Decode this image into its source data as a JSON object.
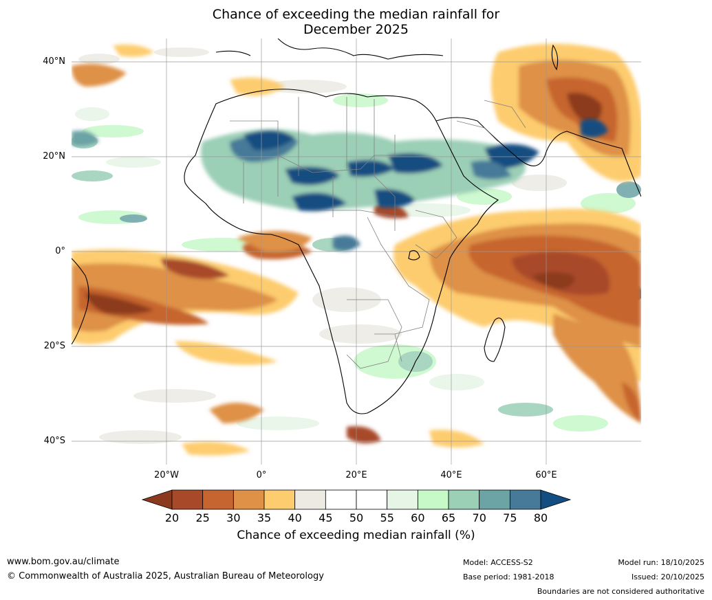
{
  "title": {
    "line1": "Chance of exceeding the median rainfall for",
    "line2": "December 2025"
  },
  "map": {
    "lat_labels": [
      "40°N",
      "20°N",
      "0°",
      "20°S",
      "40°S"
    ],
    "lon_labels": [
      "20°W",
      "0°",
      "20°E",
      "40°E",
      "60°E"
    ]
  },
  "colorbar": {
    "ticks": [
      "20",
      "25",
      "30",
      "35",
      "40",
      "45",
      "50",
      "55",
      "60",
      "65",
      "70",
      "75",
      "80"
    ],
    "colors": [
      "#8c3a1e",
      "#a8492a",
      "#c6652f",
      "#de9147",
      "#fdcc6e",
      "#eceae3",
      "#ffffff",
      "#ffffff",
      "#e6f5e6",
      "#c7f8c8",
      "#9bcfb6",
      "#6ca3a5",
      "#467a98",
      "#124e81"
    ],
    "label": "Chance of exceeding median rainfall (%)"
  },
  "footer": {
    "website": "www.bom.gov.au/climate",
    "copyright": "© Commonwealth of Australia 2025, Australian Bureau of Meteorology",
    "model": "Model: ACCESS-S2",
    "base_period": "Base period: 1981-2018",
    "model_run": "Model run: 18/10/2025",
    "issued": "Issued: 20/10/2025",
    "disclaimer": "Boundaries are not considered authoritative"
  }
}
